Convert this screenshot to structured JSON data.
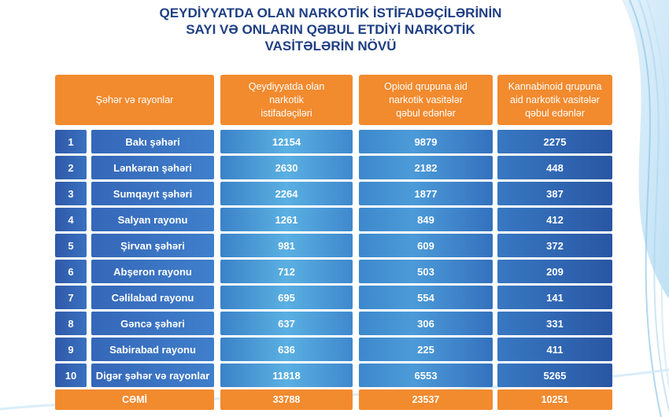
{
  "title_lines": [
    "QEYDİYYATDA OLAN NARKOTİK İSTİFADƏÇİLƏRİNİN",
    "SAYI VƏ ONLARIN QƏBUL ETDİYİ NARKOTİK",
    "VASİTƏLƏRİN NÖVÜ"
  ],
  "headers": [
    "Şəhər və rayonlar",
    "Qeydiyyatda olan\nnarkotik\nistifadəçiləri",
    "Opioid qrupuna aid\nnarkotik vasitələr\nqəbul edənlər",
    "Kannabinoid qrupuna\naid narkotik vasitələr\nqəbul edənlər"
  ],
  "chart_data": {
    "type": "table",
    "columns": [
      "Şəhər və rayonlar",
      "Qeydiyyatda olan narkotik istifadəçiləri",
      "Opioid qrupuna aid narkotik vasitələr qəbul edənlər",
      "Kannabinoid qrupuna aid narkotik vasitələr qəbul edənlər"
    ],
    "rows": [
      {
        "n": "1",
        "name": "Bakı şəhəri",
        "values": [
          "12154",
          "9879",
          "2275"
        ]
      },
      {
        "n": "2",
        "name": "Lənkəran şəhəri",
        "values": [
          "2630",
          "2182",
          "448"
        ]
      },
      {
        "n": "3",
        "name": "Sumqayıt şəhəri",
        "values": [
          "2264",
          "1877",
          "387"
        ]
      },
      {
        "n": "4",
        "name": "Salyan rayonu",
        "values": [
          "1261",
          "849",
          "412"
        ]
      },
      {
        "n": "5",
        "name": "Şirvan şəhəri",
        "values": [
          "981",
          "609",
          "372"
        ]
      },
      {
        "n": "6",
        "name": "Abşeron rayonu",
        "values": [
          "712",
          "503",
          "209"
        ]
      },
      {
        "n": "7",
        "name": "Cəlilabad rayonu",
        "values": [
          "695",
          "554",
          "141"
        ]
      },
      {
        "n": "8",
        "name": "Gəncə şəhəri",
        "values": [
          "637",
          "306",
          "331"
        ]
      },
      {
        "n": "9",
        "name": "Sabirabad rayonu",
        "values": [
          "636",
          "225",
          "411"
        ]
      },
      {
        "n": "10",
        "name": "Digər şəhər və rayonlar",
        "values": [
          "11818",
          "6553",
          "5265"
        ]
      }
    ],
    "total": {
      "label": "CƏMİ",
      "values": [
        "33788",
        "23537",
        "10251"
      ]
    }
  },
  "colors": {
    "title": "#1f3f84",
    "header_orange": "#f28a2e",
    "row_blue": "#3b72c0",
    "row_light_blue": "#5ab0e2"
  }
}
